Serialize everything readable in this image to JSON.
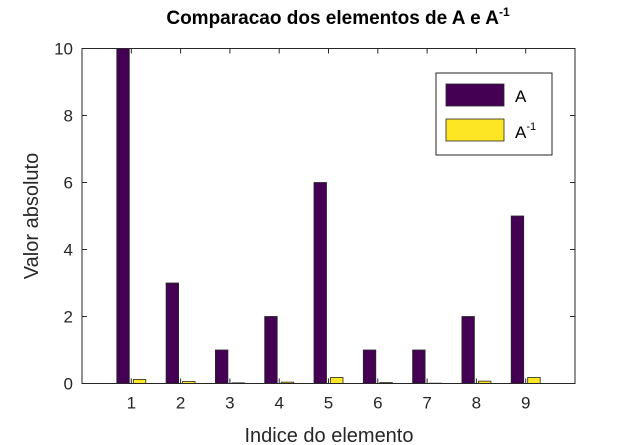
{
  "chart_data": {
    "type": "bar",
    "title": "Comparacao dos elementos de A e A",
    "title_superscript": "-1",
    "xlabel": "Indice do elemento",
    "ylabel": "Valor absoluto",
    "categories": [
      "1",
      "2",
      "3",
      "4",
      "5",
      "6",
      "7",
      "8",
      "9"
    ],
    "xlim": [
      0,
      10
    ],
    "ylim": [
      0,
      10
    ],
    "yticks": [
      "0",
      "2",
      "4",
      "6",
      "8",
      "10"
    ],
    "grid": false,
    "legend_position": "top-right",
    "series": [
      {
        "name": "A",
        "color": "#440154",
        "values": [
          10,
          3,
          1,
          2,
          6,
          1,
          1,
          2,
          5
        ]
      },
      {
        "name": "A",
        "name_superscript": "-1",
        "color": "#fde725",
        "values": [
          0.12,
          0.06,
          0.02,
          0.04,
          0.18,
          0.03,
          0.01,
          0.07,
          0.18
        ]
      }
    ]
  }
}
